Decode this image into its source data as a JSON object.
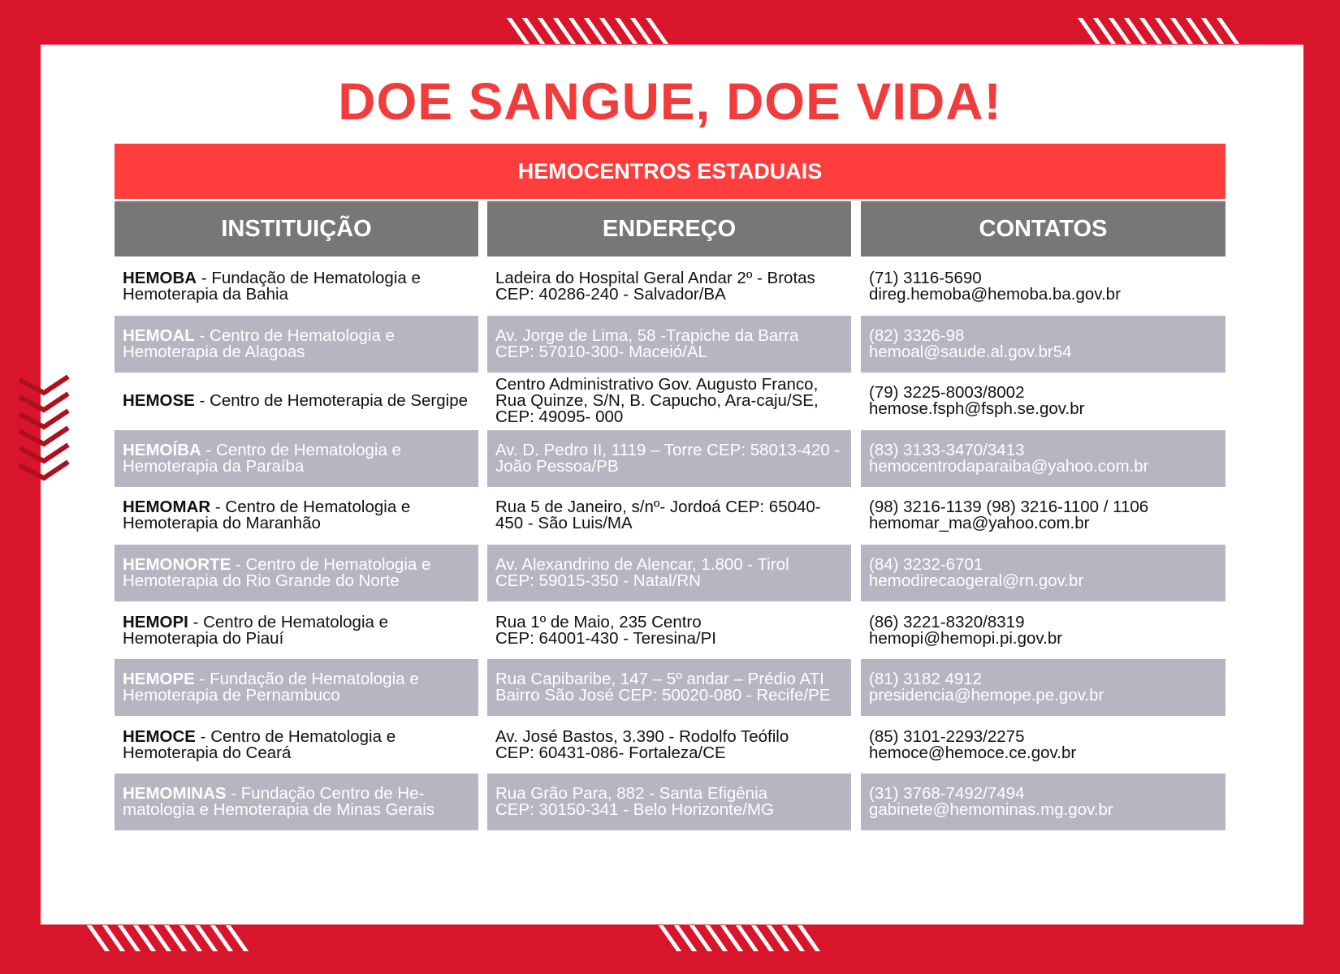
{
  "title": "DOE SANGUE, DOE VIDA!",
  "banner": "HEMOCENTROS ESTADUAIS",
  "columns": [
    "INSTITUIÇÃO",
    "ENDEREÇO",
    "CONTATOS"
  ],
  "colors": {
    "background": "#d8152a",
    "title": "#f23b3b",
    "banner": "#ff3d3d",
    "header": "#777777",
    "alt_row": "#b5b6c1"
  },
  "rows": [
    {
      "abbr": "HEMOBA",
      "name": " - Fundação de Hematologia e Hemoterapia da Bahia",
      "address": [
        "Ladeira do Hospital Geral Andar 2º - Brotas",
        "CEP: 40286-240 - Salvador/BA"
      ],
      "contacts": [
        "(71) 3116-5690",
        "direg.hemoba@hemoba.ba.gov.br"
      ]
    },
    {
      "abbr": "HEMOAL",
      "name": " - Centro de Hematologia e Hemoterapia de Alagoas",
      "address": [
        "Av. Jorge de Lima, 58 -Trapiche da Barra",
        "CEP: 57010-300- Maceió/AL"
      ],
      "contacts": [
        "(82) 3326-98",
        "hemoal@saude.al.gov.br54"
      ]
    },
    {
      "abbr": "HEMOSE",
      "name": " - Centro de Hemoterapia de Sergipe",
      "address": [
        "Centro Administrativo Gov. Augusto Franco, Rua Quinze, S/N, B. Capucho, Ara-caju/SE, CEP: 49095- 000"
      ],
      "contacts": [
        "(79) 3225-8003/8002",
        "hemose.fsph@fsph.se.gov.br"
      ]
    },
    {
      "abbr": "HEMOÍBA",
      "name": " - Centro de Hematologia e Hemoterapia da Paraíba",
      "address": [
        "Av. D. Pedro II, 1119 – Torre CEP: 58013-420 - João Pessoa/PB"
      ],
      "contacts": [
        "(83) 3133-3470/3413",
        "hemocentrodaparaiba@yahoo.com.br"
      ]
    },
    {
      "abbr": "HEMOMAR",
      "name": " - Centro de Hematologia e Hemoterapia do Maranhão",
      "address": [
        "Rua 5 de Janeiro, s/nº- Jordoá CEP: 65040-450 - São Luis/MA"
      ],
      "contacts": [
        "(98) 3216-1139 (98) 3216-1100 / 1106",
        "hemomar_ma@yahoo.com.br"
      ]
    },
    {
      "abbr": "HEMONORTE",
      "name": " - Centro de Hematologia e Hemoterapia do Rio Grande do Norte",
      "address": [
        "Av. Alexandrino de Alencar, 1.800 - Tirol",
        "CEP: 59015-350 - Natal/RN"
      ],
      "contacts": [
        "(84) 3232-6701",
        "hemodirecaogeral@rn.gov.br"
      ]
    },
    {
      "abbr": "HEMOPI",
      "name": " - Centro de Hematologia e Hemoterapia do Piauí",
      "address": [
        "Rua 1º de Maio, 235 Centro",
        "CEP: 64001-430 - Teresina/PI"
      ],
      "contacts": [
        "(86) 3221-8320/8319",
        "hemopi@hemopi.pi.gov.br"
      ]
    },
    {
      "abbr": "HEMOPE",
      "name": " - Fundação de Hematologia e Hemoterapia de Pernambuco",
      "address": [
        "Rua Capibaribe, 147 – 5º andar – Prédio ATI Bairro São José CEP: 50020-080 - Recife/PE"
      ],
      "contacts": [
        "(81) 3182 4912",
        "presidencia@hemope.pe.gov.br"
      ]
    },
    {
      "abbr": "HEMOCE",
      "name": " - Centro de Hematologia e Hemoterapia do Ceará",
      "address": [
        "Av. José Bastos, 3.390 - Rodolfo Teófilo",
        "CEP: 60431-086- Fortaleza/CE"
      ],
      "contacts": [
        "(85) 3101-2293/2275",
        "hemoce@hemoce.ce.gov.br"
      ]
    },
    {
      "abbr": "HEMOMINAS",
      "name": " - Fundação Centro de He-matologia e Hemoterapia de Minas Gerais",
      "address": [
        "Rua Grão Para, 882 - Santa Efigênia",
        "CEP: 30150-341 - Belo Horizonte/MG"
      ],
      "contacts": [
        "(31) 3768-7492/7494",
        "gabinete@hemominas.mg.gov.br"
      ]
    }
  ]
}
